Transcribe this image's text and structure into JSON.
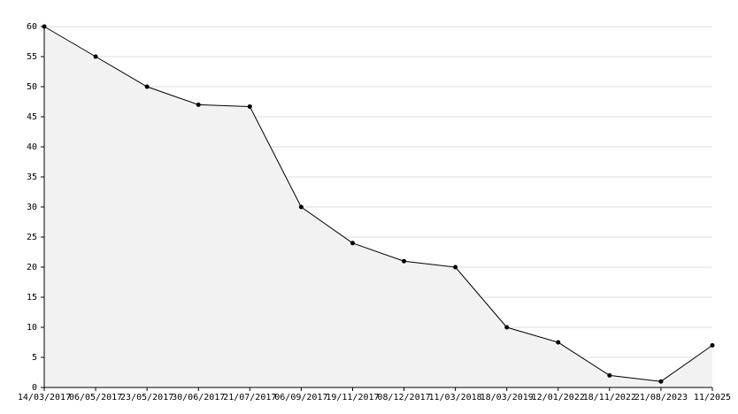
{
  "chart_data": {
    "type": "line",
    "categories": [
      "14/03/2017",
      "06/05/2017",
      "23/05/2017",
      "30/06/2017",
      "21/07/2017",
      "06/09/2017",
      "19/11/2017",
      "08/12/2017",
      "11/03/2018",
      "18/03/2019",
      "12/01/2022",
      "18/11/2022",
      "21/08/2023",
      "11/2025"
    ],
    "values": [
      60,
      55,
      50,
      47,
      46.7,
      30,
      24,
      21,
      20,
      10,
      7.5,
      2,
      1,
      7
    ],
    "color": "#000000",
    "area_color": "#f2f2f2",
    "ylim": [
      0,
      60
    ],
    "yticks": [
      0,
      5,
      10,
      15,
      20,
      25,
      30,
      35,
      40,
      45,
      50,
      55,
      60
    ],
    "grid": true
  }
}
